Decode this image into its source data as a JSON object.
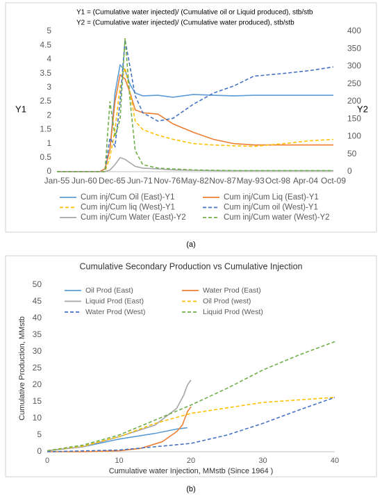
{
  "chart_data": [
    {
      "type": "line",
      "annotations": [
        "Y1 = (Cumulative water injected)/ (Cumulative oil or Liquid produced), stb/stb",
        "Y2 = (Cumulative water injected)/ (Cumulative water produced), stb/stb"
      ],
      "y_label": "Y1",
      "y2_label": "Y2",
      "caption": "(a)",
      "x": [
        1955,
        1963.5,
        1964.5,
        1965.5,
        1966.5,
        1967.5,
        1968.5,
        1969.5,
        1970.5,
        1972,
        1975,
        1978,
        1982,
        1986,
        1990,
        1994,
        2000,
        2005,
        2009.75
      ],
      "xlim": [
        1955,
        2009.75
      ],
      "xticks": [
        {
          "value": 1955,
          "label": "Jan-55"
        },
        {
          "value": 1960.42,
          "label": "Jun-60"
        },
        {
          "value": 1965.92,
          "label": "Dec-65"
        },
        {
          "value": 1971.42,
          "label": "Jun-71"
        },
        {
          "value": 1976.83,
          "label": "Nov-76"
        },
        {
          "value": 1982.33,
          "label": "May-82"
        },
        {
          "value": 1987.83,
          "label": "Nov-87"
        },
        {
          "value": 1993.33,
          "label": "May-93"
        },
        {
          "value": 1998.75,
          "label": "Oct-98"
        },
        {
          "value": 2004.25,
          "label": "Apr-04"
        },
        {
          "value": 2009.75,
          "label": "Oct-09"
        }
      ],
      "ylim": [
        0,
        5
      ],
      "yticks": [
        0,
        0.5,
        1,
        1.5,
        2,
        2.5,
        3,
        3.5,
        4,
        4.5,
        5
      ],
      "y2lim": [
        0,
        400
      ],
      "y2ticks": [
        0,
        50,
        100,
        150,
        200,
        250,
        300,
        350,
        400
      ],
      "grid": false,
      "series": [
        {
          "name": "Cum inj/Cum Oil (East)-Y1",
          "color": "#5b9bd5",
          "dash": false,
          "values": [
            0,
            0,
            0.1,
            0.8,
            2.8,
            3.8,
            3.6,
            3.1,
            2.8,
            2.7,
            2.72,
            2.65,
            2.75,
            2.72,
            2.7,
            2.72,
            2.72,
            2.72,
            2.72
          ]
        },
        {
          "name": "Cum inj/Cum Liq (East)-Y1",
          "color": "#ed7d31",
          "dash": false,
          "values": [
            0,
            0,
            0.1,
            0.8,
            2.5,
            3.45,
            3.3,
            2.8,
            2.2,
            2.1,
            2.05,
            1.7,
            1.4,
            1.15,
            1.0,
            0.95,
            0.95,
            0.95,
            0.95
          ]
        },
        {
          "name": "Cum inj/Cum liq (West)-Y1",
          "color": "#ffc000",
          "dash": true,
          "values": [
            0,
            0,
            0,
            0.5,
            1.5,
            3.0,
            3.7,
            2.8,
            1.8,
            1.5,
            1.3,
            1.15,
            1.0,
            0.95,
            0.92,
            0.9,
            1.0,
            1.1,
            1.15
          ]
        },
        {
          "name": "Cum inj/Cum oil (West)-Y1",
          "color": "#4472c4",
          "dash": true,
          "values": [
            0,
            0,
            0,
            1.2,
            0.9,
            2.5,
            4.7,
            3.7,
            2.7,
            2.1,
            1.8,
            1.9,
            2.4,
            2.8,
            3.05,
            3.4,
            3.5,
            3.6,
            3.73
          ]
        },
        {
          "name": "Cum inj/Cum Water (East)-Y2",
          "color": "#a5a5a5",
          "dash": false,
          "axis": "y2",
          "values": [
            0,
            0,
            0,
            5,
            20,
            40,
            35,
            25,
            15,
            10,
            8,
            5,
            4,
            3,
            3,
            3,
            3,
            3,
            3
          ]
        },
        {
          "name": "Cum inj/Cum water (West)-Y2",
          "color": "#70ad47",
          "dash": true,
          "axis": "y2",
          "values": [
            0,
            0,
            0,
            200,
            100,
            150,
            380,
            200,
            60,
            20,
            10,
            8,
            5,
            4,
            3,
            3,
            3,
            3,
            3
          ]
        }
      ]
    },
    {
      "type": "line",
      "title": "Cumulative Secondary Production vs Cumulative  Injection",
      "x_label": "Cumulative water Injection, MMstb (Since 1964 )",
      "y_label": "Cumulative Production, MMstb",
      "caption": "(b)",
      "xlim": [
        0,
        40
      ],
      "xticks": [
        0,
        10,
        20,
        30,
        40
      ],
      "ylim": [
        0,
        50
      ],
      "yticks": [
        0,
        5,
        10,
        15,
        20,
        25,
        30,
        35,
        40,
        45,
        50
      ],
      "grid": false,
      "series": [
        {
          "name": "Oil Prod (East)",
          "color": "#5b9bd5",
          "dash": false,
          "x": [
            0,
            5,
            10,
            15,
            18,
            19.5
          ],
          "values": [
            0.3,
            1.5,
            3.8,
            5.5,
            6.8,
            7.2
          ]
        },
        {
          "name": "Water Prod (East)",
          "color": "#ed7d31",
          "dash": false,
          "x": [
            0,
            5,
            10,
            13,
            16,
            18,
            18.8,
            19.5,
            20
          ],
          "values": [
            0,
            0,
            0.3,
            1,
            3,
            6,
            8,
            12,
            13.5
          ]
        },
        {
          "name": "Liquid Prod (East)",
          "color": "#a5a5a5",
          "dash": false,
          "x": [
            0,
            5,
            10,
            15,
            18,
            19,
            19.5,
            20
          ],
          "values": [
            0.3,
            1.5,
            4.5,
            8,
            13,
            17,
            20,
            21.5
          ]
        },
        {
          "name": "Oil Prod (west)",
          "color": "#ffc000",
          "dash": true,
          "x": [
            0,
            5,
            10,
            15,
            20,
            30,
            40
          ],
          "values": [
            0.3,
            1.7,
            4.5,
            8.5,
            11.5,
            14.8,
            16.3
          ]
        },
        {
          "name": "Water Prod (West)",
          "color": "#4472c4",
          "dash": true,
          "x": [
            0,
            10,
            20,
            25,
            30,
            35,
            40
          ],
          "values": [
            0,
            0.5,
            2.5,
            5,
            8.5,
            12.5,
            16.3
          ]
        },
        {
          "name": "Liquid Prod (West)",
          "color": "#70ad47",
          "dash": true,
          "x": [
            0,
            5,
            10,
            15,
            20,
            25,
            30,
            35,
            40
          ],
          "values": [
            0.3,
            2,
            5,
            9.5,
            14,
            19,
            24.5,
            29,
            33
          ]
        }
      ]
    }
  ]
}
